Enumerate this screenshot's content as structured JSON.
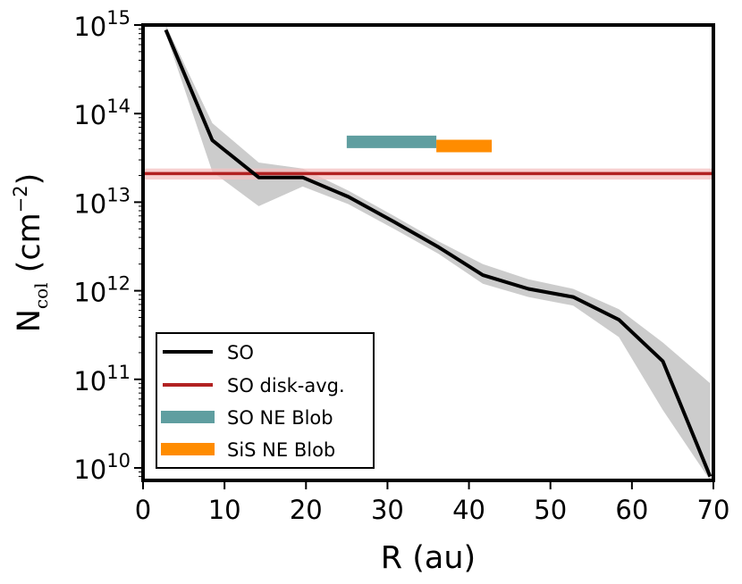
{
  "chart_data": {
    "type": "line",
    "xlabel": "R (au)",
    "ylabel": "N",
    "ylabel_subscript": "col",
    "ylabel_unit_prefix": " (cm",
    "ylabel_unit_exp": "−2",
    "ylabel_unit_suffix": ")",
    "xlim": [
      0,
      70
    ],
    "ylim": [
      7000000000.0,
      1000000000000000.0
    ],
    "yscale": "log",
    "x_ticks": [
      0,
      10,
      20,
      30,
      40,
      50,
      60,
      70
    ],
    "x_tick_labels": [
      "0",
      "10",
      "20",
      "30",
      "40",
      "50",
      "60",
      "70"
    ],
    "y_ticks": [
      {
        "value": 10000000000.0,
        "base": "10",
        "exp": "10"
      },
      {
        "value": 100000000000.0,
        "base": "10",
        "exp": "11"
      },
      {
        "value": 1000000000000.0,
        "base": "10",
        "exp": "12"
      },
      {
        "value": 10000000000000.0,
        "base": "10",
        "exp": "13"
      },
      {
        "value": 100000000000000.0,
        "base": "10",
        "exp": "14"
      },
      {
        "value": 1000000000000000.0,
        "base": "10",
        "exp": "15"
      }
    ],
    "series": [
      {
        "name": "SO",
        "color": "#000000",
        "x": [
          2.8,
          8.5,
          14.2,
          19.6,
          25.2,
          30.8,
          36.3,
          41.7,
          47.3,
          52.8,
          58.4,
          63.8,
          69.6
        ],
        "y": [
          880000000000000.0,
          50000000000000.0,
          19000000000000.0,
          19000000000000.0,
          11500000000000.0,
          6000000000000.0,
          3100000000000.0,
          1500000000000.0,
          1050000000000.0,
          850000000000.0,
          470000000000.0,
          160000000000.0,
          8000000000.0
        ],
        "band_upper": [
          1100000000000000.0,
          78000000000000.0,
          28000000000000.0,
          24000000000000.0,
          13500000000000.0,
          7000000000000.0,
          3600000000000.0,
          2000000000000.0,
          1350000000000.0,
          1050000000000.0,
          620000000000.0,
          260000000000.0,
          90000000000.0
        ],
        "band_lower": [
          800000000000000.0,
          22000000000000.0,
          9000000000000.0,
          15000000000000.0,
          9500000000000.0,
          5000000000000.0,
          2600000000000.0,
          1200000000000.0,
          850000000000.0,
          680000000000.0,
          300000000000.0,
          45000000000.0,
          7000000000.0
        ]
      },
      {
        "name": "SO disk-avg.",
        "color": "#b22222",
        "y": 21000000000000.0,
        "band": [
          18000000000000.0,
          24000000000000.0
        ]
      },
      {
        "name": "SO NE Blob",
        "color": "#5f9ea0",
        "x_range": [
          25.0,
          36.0
        ],
        "y": 48000000000000.0
      },
      {
        "name": "SiS NE Blob",
        "color": "#ff8c00",
        "x_range": [
          36.0,
          42.8
        ],
        "y": 43000000000000.0
      }
    ],
    "legend_location": "lower-left",
    "grid": false
  }
}
